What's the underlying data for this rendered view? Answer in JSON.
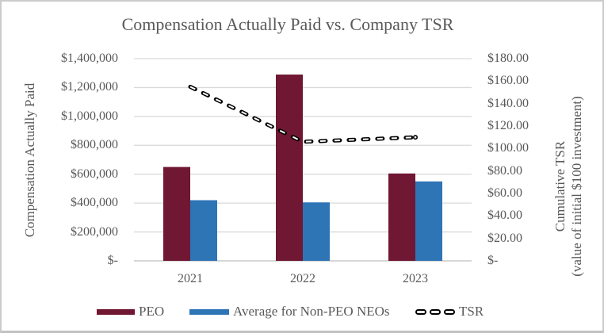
{
  "title": "Compensation Actually Paid vs. Company TSR",
  "left_axis": {
    "label": "Compensation Actually Paid",
    "ticks": [
      "$1,400,000",
      "$1,200,000",
      "$1,000,000",
      "$800,000",
      "$600,000",
      "$400,000",
      "$200,000",
      "$-"
    ]
  },
  "right_axis": {
    "label_line1": "Cumulative TSR",
    "label_line2": "(value of initial $100 investment)",
    "ticks": [
      "$180.00",
      "$160.00",
      "$140.00",
      "$120.00",
      "$100.00",
      "$80.00",
      "$60.00",
      "$40.00",
      "$20.00",
      "$-"
    ]
  },
  "x_axis": {
    "categories": [
      "2021",
      "2022",
      "2023"
    ]
  },
  "legend": {
    "peo_label": "PEO",
    "neo_label": "Average for Non-PEO NEOs",
    "tsr_label": "TSR"
  },
  "colors": {
    "peo_bar": "#701733",
    "neo_bar": "#2E75B6",
    "tsr_line": "#000000",
    "gridline": "#D9D9D9",
    "axis_line": "#BFBFBF",
    "text": "#595959",
    "border": "#CBCBCB"
  },
  "chart_data": {
    "type": "combo-bar-line",
    "title": "Compensation Actually Paid vs. Company TSR",
    "categories": [
      "2021",
      "2022",
      "2023"
    ],
    "series": [
      {
        "name": "PEO",
        "type": "bar",
        "axis": "left",
        "color": "#701733",
        "values": [
          650000,
          1290000,
          605000
        ]
      },
      {
        "name": "Average for Non-PEO NEOs",
        "type": "bar",
        "axis": "left",
        "color": "#2E75B6",
        "values": [
          420000,
          405000,
          550000
        ]
      },
      {
        "name": "TSR",
        "type": "line",
        "axis": "right",
        "color": "#000000",
        "style": "dashed-hollow",
        "values": [
          155,
          106,
          110
        ]
      }
    ],
    "left_axis": {
      "label": "Compensation Actually Paid",
      "min": 0,
      "max": 1400000,
      "step": 200000
    },
    "right_axis": {
      "label": "Cumulative TSR (value of initial $100 investment)",
      "min": 0,
      "max": 180,
      "step": 20
    },
    "grid": true,
    "legend_position": "bottom"
  }
}
